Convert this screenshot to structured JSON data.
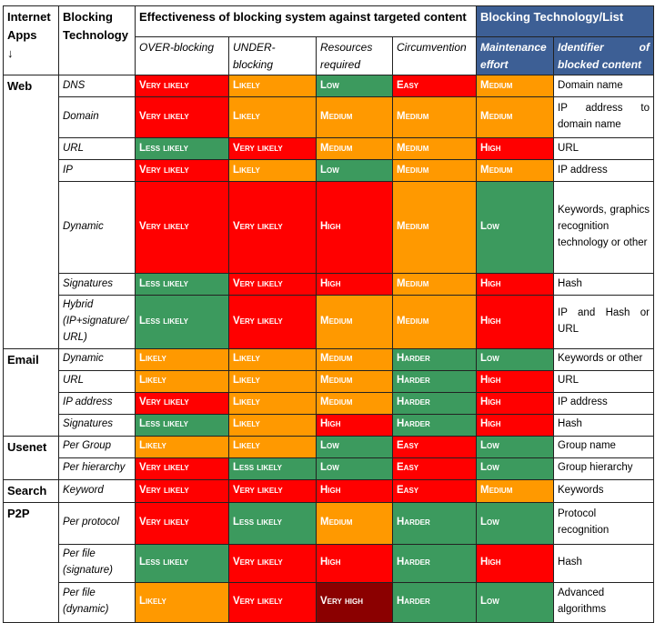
{
  "header": {
    "apps": "Internet Apps",
    "apps_arrow": "↓",
    "technology": "Blocking Technology",
    "effectiveness": "Effectiveness of blocking system against targeted content",
    "blocking_list": "Blocking Technology/List",
    "cols": [
      "OVER-blocking",
      "UNDER-blocking",
      "Resources required",
      "Circumvention",
      "Maintenance effort",
      "Identifier of blocked content"
    ]
  },
  "groups": [
    {
      "app": "Web",
      "rows": [
        {
          "tech": "DNS",
          "cells": [
            [
              "Very likely",
              "red"
            ],
            [
              "Likely",
              "org"
            ],
            [
              "Low",
              "grn"
            ],
            [
              "Easy",
              "red"
            ],
            [
              "Medium",
              "org"
            ]
          ],
          "id": "Domain name"
        },
        {
          "tech": "Domain",
          "cells": [
            [
              "Very likely",
              "red"
            ],
            [
              "Likely",
              "org"
            ],
            [
              "Medium",
              "org"
            ],
            [
              "Medium",
              "org"
            ],
            [
              "Medium",
              "org"
            ]
          ],
          "id": "IP address to domain name"
        },
        {
          "tech": "URL",
          "cells": [
            [
              "Less likely",
              "grn"
            ],
            [
              "Very likely",
              "red"
            ],
            [
              "Medium",
              "org"
            ],
            [
              "Medium",
              "org"
            ],
            [
              "High",
              "red"
            ]
          ],
          "id": "URL"
        },
        {
          "tech": "IP",
          "cells": [
            [
              "Very likely",
              "red"
            ],
            [
              "Likely",
              "org"
            ],
            [
              "Low",
              "grn"
            ],
            [
              "Medium",
              "org"
            ],
            [
              "Medium",
              "org"
            ]
          ],
          "id": "IP address"
        },
        {
          "tech": "Dynamic",
          "cells": [
            [
              "Very likely",
              "red"
            ],
            [
              "Very likely",
              "red"
            ],
            [
              "High",
              "red"
            ],
            [
              "Medium",
              "org"
            ],
            [
              "Low",
              "grn"
            ]
          ],
          "id": "Keywords, graphics recognition technology or other"
        },
        {
          "tech": "Signatures",
          "cells": [
            [
              "Less likely",
              "grn"
            ],
            [
              "Very likely",
              "red"
            ],
            [
              "High",
              "red"
            ],
            [
              "Medium",
              "org"
            ],
            [
              "High",
              "red"
            ]
          ],
          "id": "Hash"
        },
        {
          "tech": "Hybrid (IP+signature/ URL)",
          "cells": [
            [
              "Less likely",
              "grn"
            ],
            [
              "Very likely",
              "red"
            ],
            [
              "Medium",
              "org"
            ],
            [
              "Medium",
              "org"
            ],
            [
              "High",
              "red"
            ]
          ],
          "id": "IP and Hash or URL"
        }
      ]
    },
    {
      "app": "Email",
      "rows": [
        {
          "tech": "Dynamic",
          "cells": [
            [
              "Likely",
              "org"
            ],
            [
              "Likely",
              "org"
            ],
            [
              "Medium",
              "org"
            ],
            [
              "Harder",
              "grn"
            ],
            [
              "Low",
              "grn"
            ]
          ],
          "id": "Keywords or other"
        },
        {
          "tech": "URL",
          "cells": [
            [
              "Likely",
              "org"
            ],
            [
              "Likely",
              "org"
            ],
            [
              "Medium",
              "org"
            ],
            [
              "Harder",
              "grn"
            ],
            [
              "High",
              "red"
            ]
          ],
          "id": "URL"
        },
        {
          "tech": "IP address",
          "cells": [
            [
              "Very likely",
              "red"
            ],
            [
              "Likely",
              "org"
            ],
            [
              "Medium",
              "org"
            ],
            [
              "Harder",
              "grn"
            ],
            [
              "High",
              "red"
            ]
          ],
          "id": "IP address"
        },
        {
          "tech": "Signatures",
          "cells": [
            [
              "Less likely",
              "grn"
            ],
            [
              "Likely",
              "org"
            ],
            [
              "High",
              "red"
            ],
            [
              "Harder",
              "grn"
            ],
            [
              "High",
              "red"
            ]
          ],
          "id": "Hash"
        }
      ]
    },
    {
      "app": "Usenet",
      "rows": [
        {
          "tech": "Per Group",
          "cells": [
            [
              "Likely",
              "org"
            ],
            [
              "Likely",
              "org"
            ],
            [
              "Low",
              "grn"
            ],
            [
              "Easy",
              "red"
            ],
            [
              "Low",
              "grn"
            ]
          ],
          "id": "Group name"
        },
        {
          "tech": "Per hierarchy",
          "cells": [
            [
              "Very likely",
              "red"
            ],
            [
              "Less likely",
              "grn"
            ],
            [
              "Low",
              "grn"
            ],
            [
              "Easy",
              "red"
            ],
            [
              "Low",
              "grn"
            ]
          ],
          "id": "Group hierarchy"
        }
      ]
    },
    {
      "app": "Search",
      "rows": [
        {
          "tech": "Keyword",
          "cells": [
            [
              "Very likely",
              "red"
            ],
            [
              "Very likely",
              "red"
            ],
            [
              "High",
              "red"
            ],
            [
              "Easy",
              "red"
            ],
            [
              "Medium",
              "org"
            ]
          ],
          "id": "Keywords"
        }
      ]
    },
    {
      "app": "P2P",
      "rows": [
        {
          "tech": "Per protocol",
          "cells": [
            [
              "Very likely",
              "red"
            ],
            [
              "Less likely",
              "grn"
            ],
            [
              "Medium",
              "org"
            ],
            [
              "Harder",
              "grn"
            ],
            [
              "Low",
              "grn"
            ]
          ],
          "id": "Protocol recognition"
        },
        {
          "tech": "Per file (signature)",
          "cells": [
            [
              "Less likely",
              "grn"
            ],
            [
              "Very likely",
              "red"
            ],
            [
              "High",
              "red"
            ],
            [
              "Harder",
              "grn"
            ],
            [
              "High",
              "red"
            ]
          ],
          "id": "Hash"
        },
        {
          "tech": "Per file (dynamic)",
          "cells": [
            [
              "Likely",
              "org"
            ],
            [
              "Very likely",
              "red"
            ],
            [
              "Very high",
              "drk"
            ],
            [
              "Harder",
              "grn"
            ],
            [
              "Low",
              "grn"
            ]
          ],
          "id": "Advanced algorithms"
        }
      ]
    }
  ]
}
